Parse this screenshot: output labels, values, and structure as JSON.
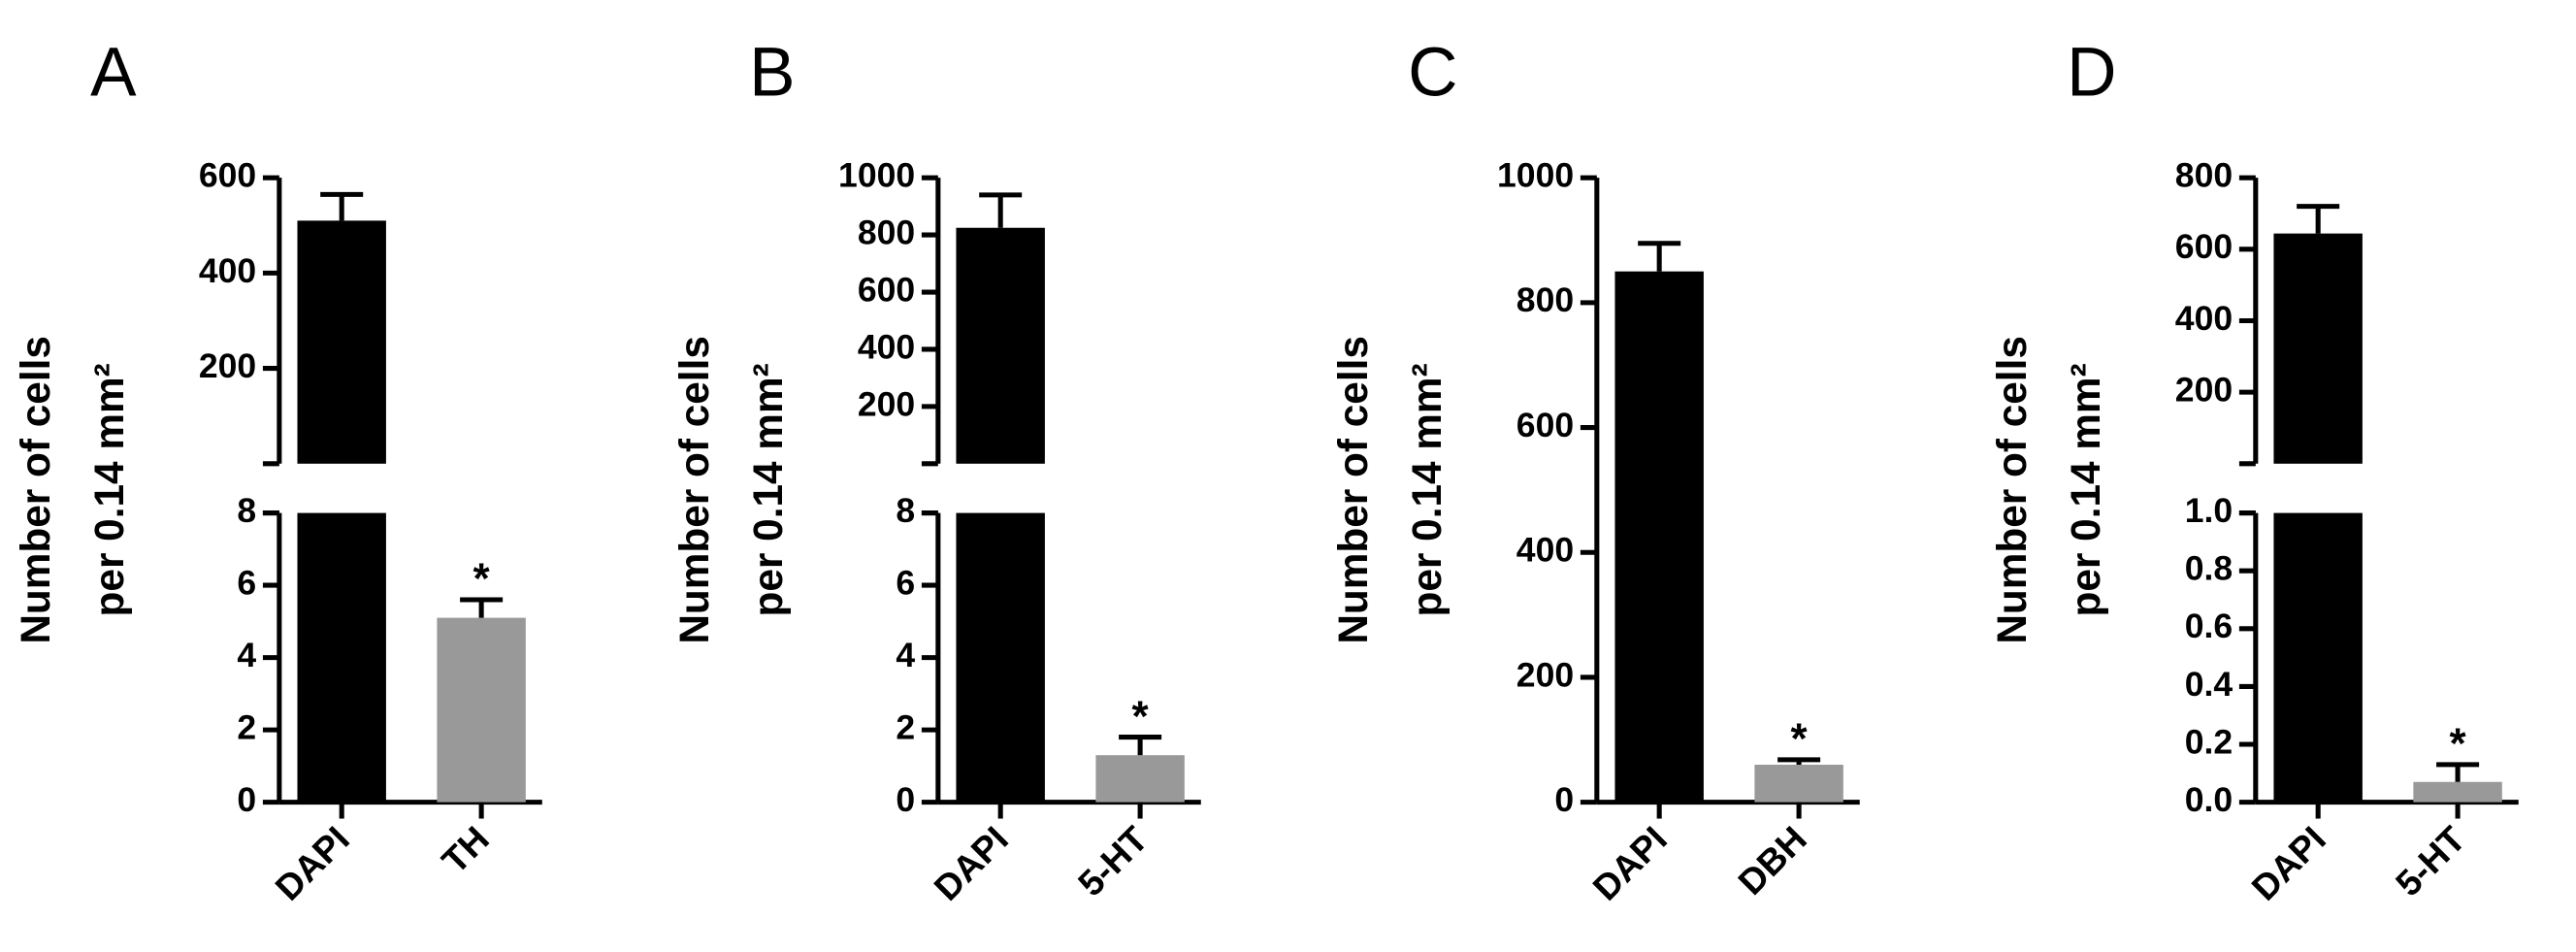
{
  "chart_data": [
    {
      "panel": "A",
      "type": "bar",
      "y_label": [
        "Number of cells",
        "per 0.14 mm²"
      ],
      "categories": [
        "DAPI",
        "TH"
      ],
      "values": [
        510,
        5.1
      ],
      "errors": [
        55,
        0.5
      ],
      "colors": [
        "#000000",
        "#999999"
      ],
      "annotation": "*",
      "axes": [
        {
          "ylim": [
            0,
            8
          ],
          "yticks": [
            0,
            2,
            4,
            6,
            8
          ]
        },
        {
          "ylim": [
            0,
            600
          ],
          "yticks": [
            200,
            400,
            600
          ]
        }
      ]
    },
    {
      "panel": "B",
      "type": "bar",
      "y_label": [
        "Number of cells",
        "per 0.14 mm²"
      ],
      "categories": [
        "DAPI",
        "5-HT"
      ],
      "values": [
        825,
        1.3
      ],
      "errors": [
        115,
        0.5
      ],
      "colors": [
        "#000000",
        "#999999"
      ],
      "annotation": "*",
      "axes": [
        {
          "ylim": [
            0,
            8
          ],
          "yticks": [
            0,
            2,
            4,
            6,
            8
          ]
        },
        {
          "ylim": [
            0,
            1000
          ],
          "yticks": [
            200,
            400,
            600,
            800,
            1000
          ]
        }
      ]
    },
    {
      "panel": "C",
      "type": "bar",
      "y_label": [
        "Number of cells",
        "per 0.14 mm²"
      ],
      "categories": [
        "DAPI",
        "DBH"
      ],
      "values": [
        850,
        60
      ],
      "errors": [
        45,
        8
      ],
      "colors": [
        "#000000",
        "#999999"
      ],
      "annotation": "*",
      "axes": [
        {
          "ylim": [
            0,
            1000
          ],
          "yticks": [
            0,
            200,
            400,
            600,
            800,
            1000
          ]
        }
      ]
    },
    {
      "panel": "D",
      "type": "bar",
      "y_label": [
        "Number of cells",
        "per 0.14 mm²"
      ],
      "categories": [
        "DAPI",
        "5-HT"
      ],
      "values": [
        644,
        0.07
      ],
      "errors": [
        76,
        0.06
      ],
      "colors": [
        "#000000",
        "#999999"
      ],
      "annotation": "*",
      "axes": [
        {
          "ylim": [
            0,
            1
          ],
          "yticks": [
            {
              "value": 0,
              "label": "0.0"
            },
            {
              "value": 0.2,
              "label": "0.2"
            },
            {
              "value": 0.4,
              "label": "0.4"
            },
            {
              "value": 0.6,
              "label": "0.6"
            },
            {
              "value": 0.8,
              "label": "0.8"
            },
            {
              "value": 1,
              "label": "1.0"
            }
          ]
        },
        {
          "ylim": [
            0,
            800
          ],
          "yticks": [
            200,
            400,
            600,
            800
          ]
        }
      ]
    }
  ]
}
